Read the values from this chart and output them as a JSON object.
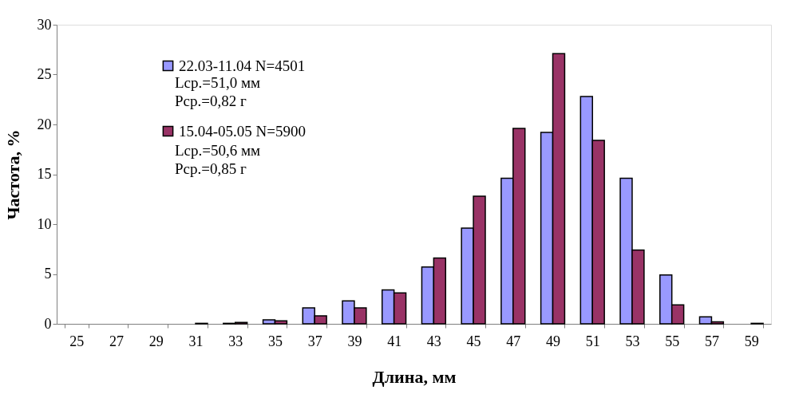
{
  "chart_data": {
    "type": "bar",
    "xlabel": "Длина, мм",
    "ylabel": "Частота, %",
    "categories": [
      "25",
      "27",
      "29",
      "31",
      "33",
      "35",
      "37",
      "39",
      "41",
      "43",
      "45",
      "47",
      "49",
      "51",
      "53",
      "55",
      "57",
      "59"
    ],
    "series": [
      {
        "name": "22.03-11.04  N=4501",
        "color": "#9999ff",
        "values": [
          0,
          0,
          0,
          0,
          0.05,
          0.4,
          1.6,
          2.3,
          3.4,
          5.7,
          9.6,
          14.6,
          19.2,
          22.8,
          14.6,
          4.9,
          0.7,
          0
        ]
      },
      {
        "name": "15.04-05.05  N=5900",
        "color": "#993366",
        "values": [
          0,
          0,
          0,
          0.05,
          0.15,
          0.3,
          0.8,
          1.6,
          3.1,
          6.6,
          12.8,
          19.6,
          27.1,
          18.4,
          7.4,
          1.9,
          0.2,
          0.05
        ]
      }
    ],
    "annotations": [
      "Lср.=51,0 мм",
      "Рср.=0,82 г",
      "Lср.=50,6 мм",
      "Рср.=0,85 г"
    ],
    "ylim": [
      0,
      30
    ],
    "yticks": [
      0,
      5,
      10,
      15,
      20,
      25,
      30
    ],
    "grid": false,
    "legend": "top left"
  }
}
